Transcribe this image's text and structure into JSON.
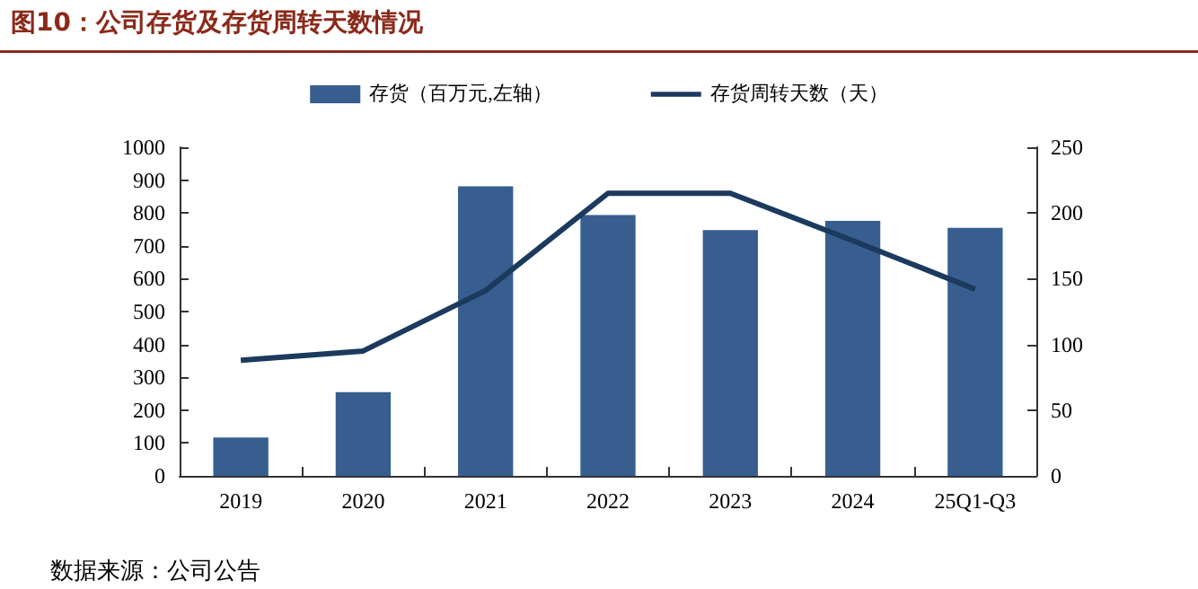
{
  "chart_data": {
    "type": "bar",
    "title": "图10：公司存货及存货周转天数情况",
    "categories": [
      "2019",
      "2020",
      "2021",
      "2022",
      "2023",
      "2024",
      "25Q1-Q3"
    ],
    "series": [
      {
        "name": "存货（百万元,左轴）",
        "color": "#375e8f",
        "values": [
          117,
          255,
          881,
          794,
          748,
          776,
          755
        ]
      },
      {
        "name": "存货周转天数（天）",
        "type": "line",
        "axis": "y2",
        "color": "#1b3a5e",
        "values": [
          88,
          95,
          141,
          215,
          215,
          179,
          142
        ]
      }
    ],
    "ylim": [
      0,
      1000
    ],
    "yticks": [
      0,
      100,
      200,
      300,
      400,
      500,
      600,
      700,
      800,
      900,
      1000
    ],
    "y2lim": [
      0,
      250
    ],
    "y2ticks": [
      0,
      50,
      100,
      150,
      200,
      250
    ],
    "grid": false,
    "legend": "top",
    "marker": "none",
    "line_style": "solid",
    "annotations": [
      "数据来源：公司公告"
    ]
  }
}
